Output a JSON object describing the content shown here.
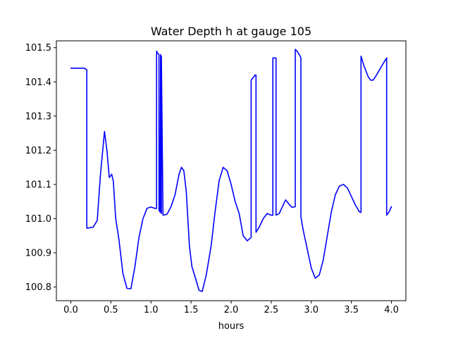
{
  "chart_data": {
    "type": "line",
    "title": "Water Depth h at gauge 105",
    "xlabel": "hours",
    "ylabel": "",
    "xlim": [
      -0.18,
      4.18
    ],
    "ylim": [
      100.76,
      101.52
    ],
    "xticks": [
      0.0,
      0.5,
      1.0,
      1.5,
      2.0,
      2.5,
      3.0,
      3.5,
      4.0
    ],
    "xtick_labels": [
      "0.0",
      "0.5",
      "1.0",
      "1.5",
      "2.0",
      "2.5",
      "3.0",
      "3.5",
      "4.0"
    ],
    "yticks": [
      100.8,
      100.9,
      101.0,
      101.1,
      101.2,
      101.3,
      101.4,
      101.5
    ],
    "ytick_labels": [
      "100.8",
      "100.9",
      "101.0",
      "101.1",
      "101.2",
      "101.3",
      "101.4",
      "101.5"
    ],
    "grid": false,
    "series": [
      {
        "color": "#0000ff",
        "x": [
          0.0,
          0.1,
          0.17,
          0.2,
          0.2,
          0.28,
          0.33,
          0.37,
          0.42,
          0.45,
          0.48,
          0.51,
          0.53,
          0.56,
          0.6,
          0.65,
          0.7,
          0.75,
          0.8,
          0.85,
          0.9,
          0.95,
          1.0,
          1.05,
          1.07,
          1.07,
          1.08,
          1.1,
          1.1,
          1.11,
          1.12,
          1.12,
          1.13,
          1.13,
          1.15,
          1.2,
          1.25,
          1.3,
          1.35,
          1.38,
          1.41,
          1.44,
          1.48,
          1.51,
          1.55,
          1.6,
          1.64,
          1.69,
          1.75,
          1.8,
          1.85,
          1.9,
          1.95,
          2.0,
          2.05,
          2.1,
          2.15,
          2.2,
          2.25,
          2.25,
          2.3,
          2.31,
          2.31,
          2.35,
          2.4,
          2.45,
          2.5,
          2.52,
          2.52,
          2.56,
          2.56,
          2.6,
          2.65,
          2.68,
          2.73,
          2.76,
          2.8,
          2.8,
          2.82,
          2.85,
          2.87,
          2.87,
          2.9,
          2.95,
          3.0,
          3.05,
          3.1,
          3.15,
          3.2,
          3.25,
          3.3,
          3.35,
          3.4,
          3.45,
          3.5,
          3.55,
          3.6,
          3.62,
          3.62,
          3.66,
          3.71,
          3.74,
          3.77,
          3.8,
          3.85,
          3.9,
          3.94,
          3.94,
          3.97,
          4.0
        ],
        "y": [
          101.44,
          101.44,
          101.44,
          101.435,
          100.972,
          100.975,
          100.995,
          101.13,
          101.255,
          101.2,
          101.12,
          101.13,
          101.11,
          101.0,
          100.94,
          100.84,
          100.796,
          100.795,
          100.86,
          100.945,
          101.0,
          101.03,
          101.034,
          101.03,
          101.03,
          101.49,
          101.485,
          101.48,
          101.025,
          101.02,
          101.48,
          101.02,
          101.015,
          101.475,
          101.01,
          101.013,
          101.035,
          101.07,
          101.13,
          101.15,
          101.14,
          101.08,
          100.92,
          100.86,
          100.83,
          100.79,
          100.787,
          100.835,
          100.92,
          101.02,
          101.11,
          101.15,
          101.14,
          101.1,
          101.05,
          101.015,
          100.95,
          100.935,
          100.945,
          101.405,
          101.42,
          101.42,
          100.96,
          100.975,
          101.0,
          101.015,
          101.01,
          101.01,
          101.47,
          101.47,
          101.01,
          101.015,
          101.04,
          101.055,
          101.04,
          101.033,
          101.035,
          101.495,
          101.49,
          101.48,
          101.47,
          101.005,
          100.965,
          100.91,
          100.855,
          100.826,
          100.835,
          100.88,
          100.95,
          101.02,
          101.07,
          101.095,
          101.1,
          101.09,
          101.065,
          101.04,
          101.02,
          101.018,
          101.475,
          101.445,
          101.415,
          101.405,
          101.405,
          101.415,
          101.435,
          101.455,
          101.47,
          101.01,
          101.02,
          101.035
        ]
      }
    ]
  }
}
